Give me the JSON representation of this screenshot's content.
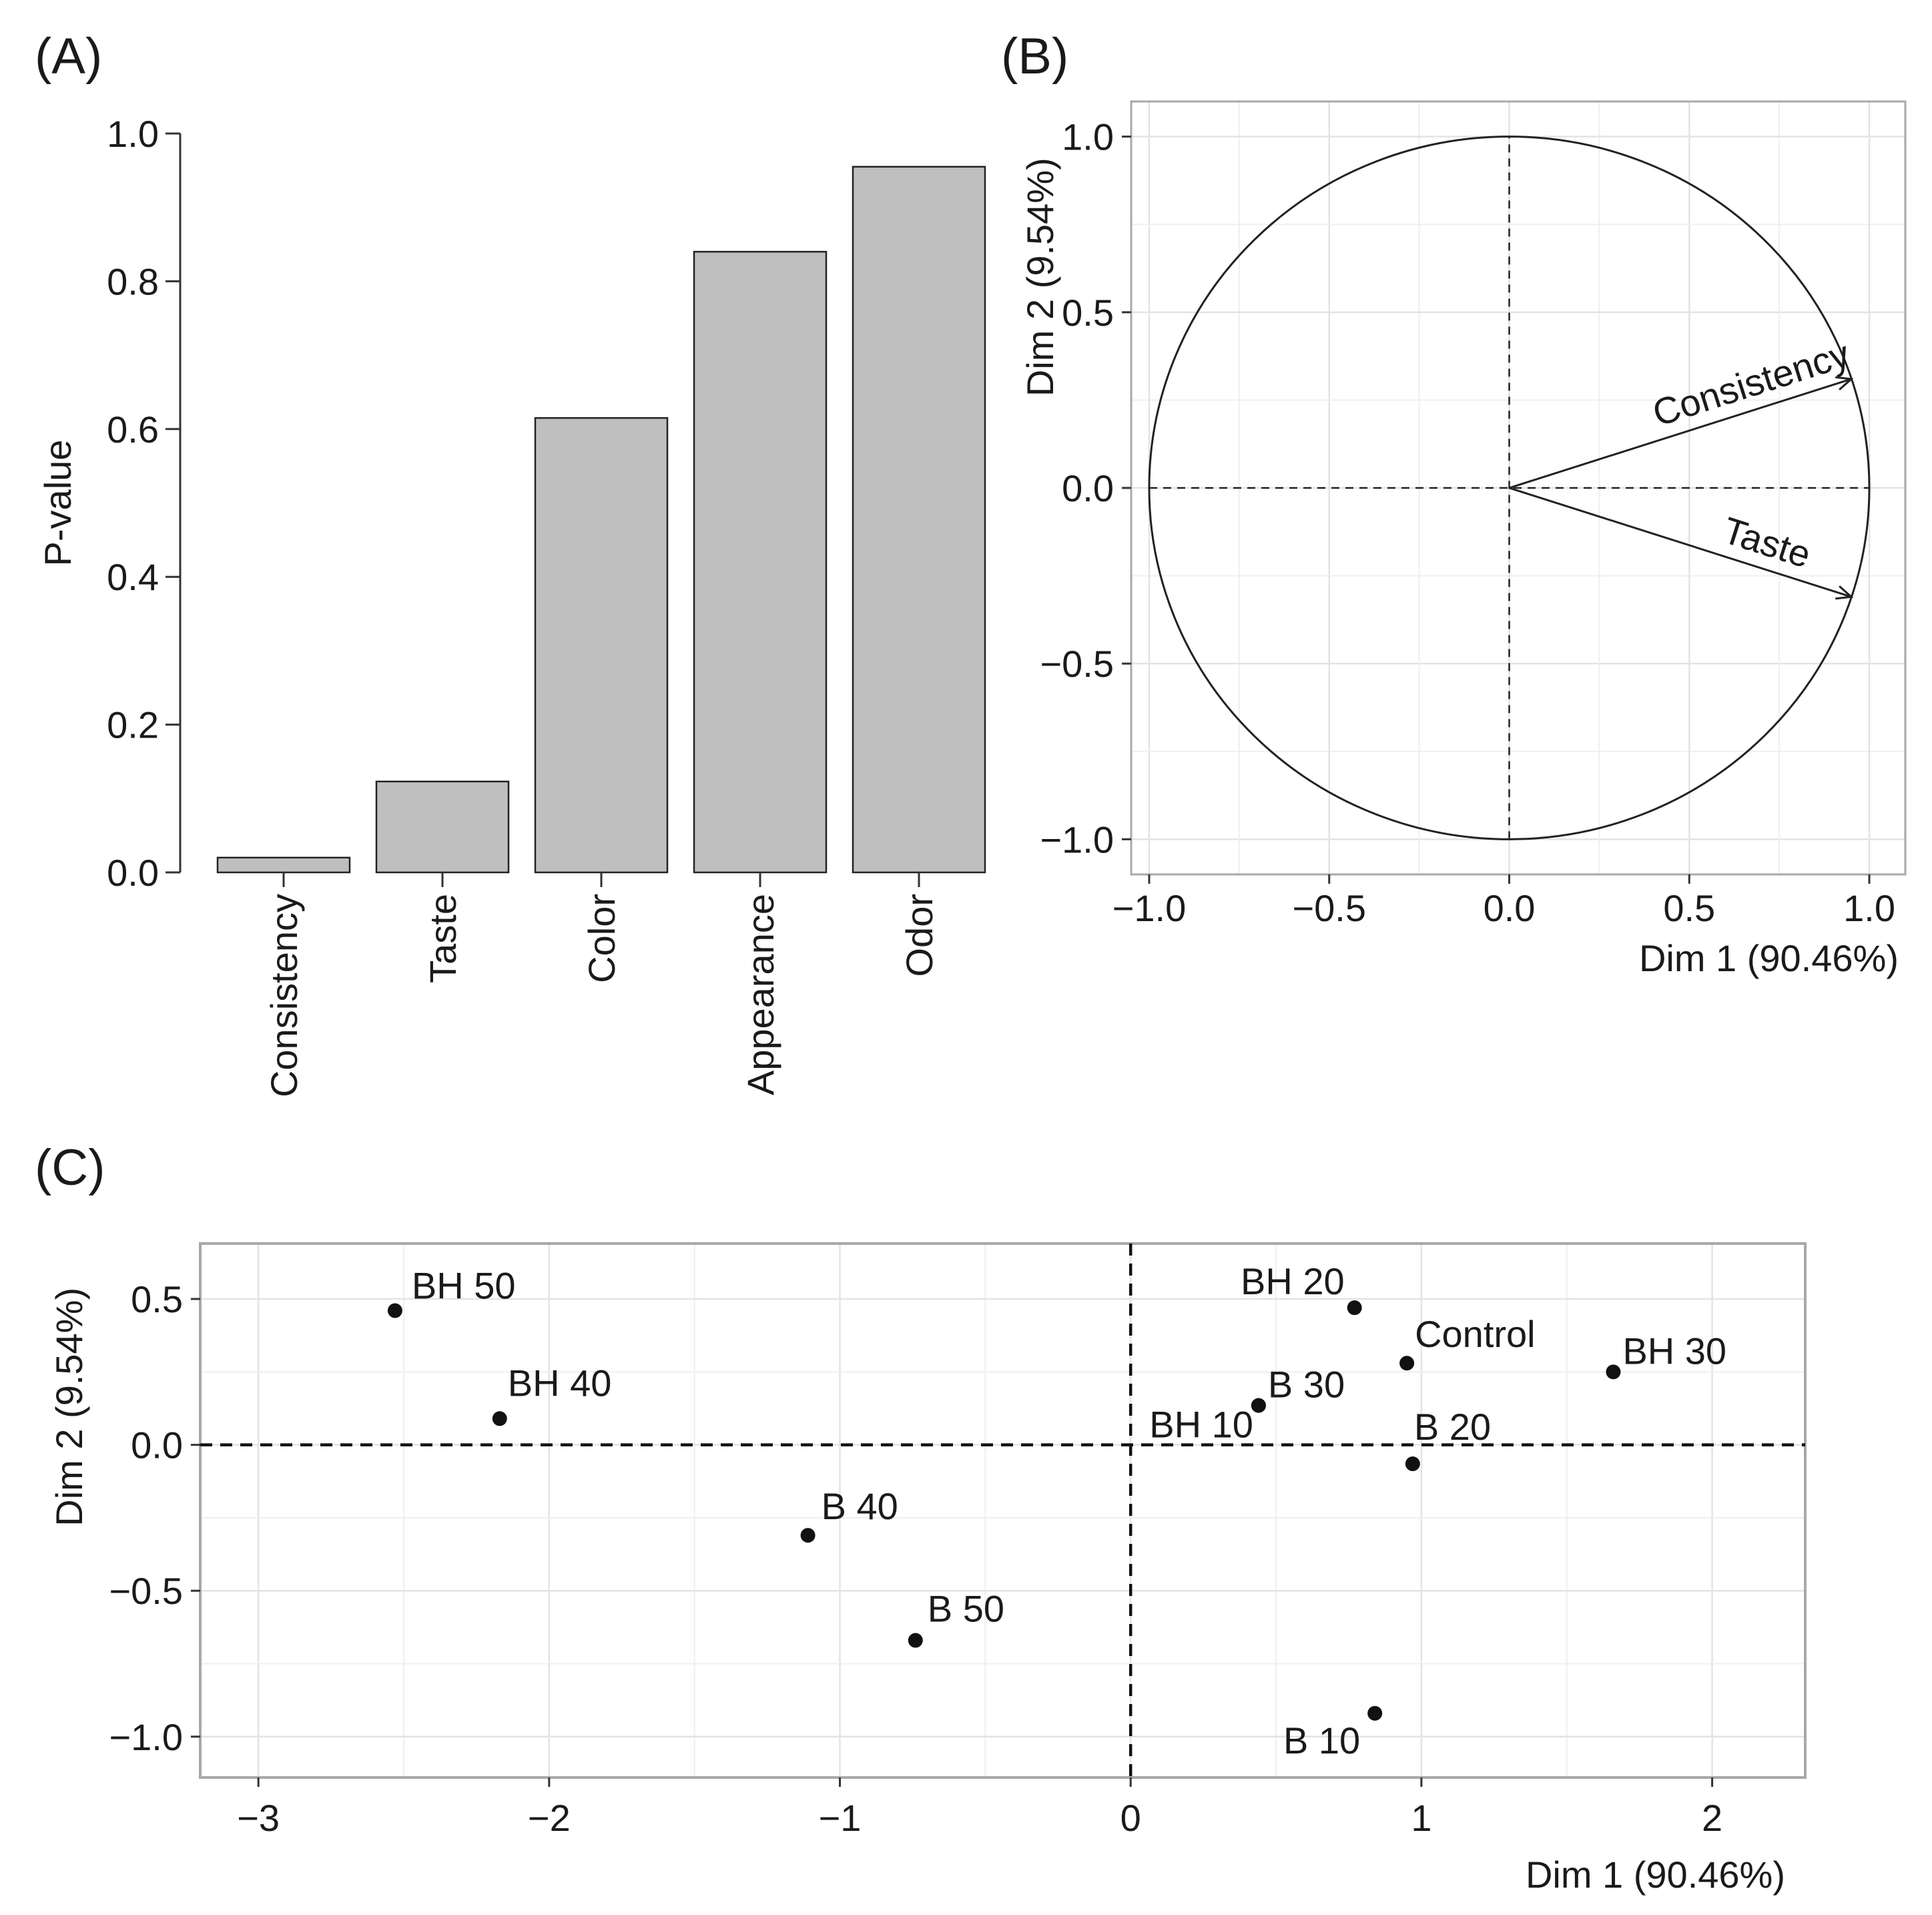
{
  "chart_data": [
    {
      "panel": "(A)",
      "type": "bar",
      "categories": [
        "Consistency",
        "Taste",
        "Color",
        "Appearance",
        "Odor"
      ],
      "values": [
        0.02,
        0.123,
        0.615,
        0.84,
        0.955
      ],
      "ylabel": "P-value",
      "xlabel": "",
      "ylim": [
        0,
        1
      ],
      "yticks": [
        "0.0",
        "0.2",
        "0.4",
        "0.6",
        "0.8",
        "1.0"
      ],
      "bar_color": "#bfbfbf"
    },
    {
      "panel": "(B)",
      "type": "scatter",
      "subtype": "variable correlation circle",
      "xlabel": "Dim 1 (90.46%)",
      "ylabel": "Dim 2 (9.54%)",
      "xlim": [
        -1.05,
        1.1
      ],
      "ylim": [
        -1.1,
        1.1
      ],
      "xticks": [
        "−1.0",
        "−0.5",
        "0.0",
        "0.5",
        "1.0"
      ],
      "yticks": [
        "−1.0",
        "−0.5",
        "0.0",
        "0.5",
        "1.0"
      ],
      "vectors": [
        {
          "name": "Consistency",
          "x": 0.95,
          "y": 0.31
        },
        {
          "name": "Taste",
          "x": 0.95,
          "y": -0.31
        }
      ],
      "grid": true
    },
    {
      "panel": "(C)",
      "type": "scatter",
      "subtype": "individuals factor map",
      "xlabel": "Dim 1 (90.46%)",
      "ylabel": "Dim 2 (9.54%)",
      "xlim": [
        -3.2,
        2.32
      ],
      "ylim": [
        -1.14,
        0.69
      ],
      "xticks": [
        "−3",
        "−2",
        "−1",
        "0",
        "1",
        "2"
      ],
      "yticks": [
        "−1.0",
        "−0.5",
        "0.0",
        "0.5"
      ],
      "points": [
        {
          "name": "BH 50",
          "x": -2.53,
          "y": 0.46
        },
        {
          "name": "BH 40",
          "x": -2.17,
          "y": 0.09
        },
        {
          "name": "B 40",
          "x": -1.11,
          "y": -0.31
        },
        {
          "name": "B 50",
          "x": -0.74,
          "y": -0.67
        },
        {
          "name": "BH 20",
          "x": 0.77,
          "y": 0.47
        },
        {
          "name": "Control",
          "x": 0.95,
          "y": 0.28
        },
        {
          "name": "BH 30",
          "x": 1.66,
          "y": 0.25
        },
        {
          "name": "B 30",
          "x": 0.44,
          "y": 0.135
        },
        {
          "name": "BH 10",
          "x": 0.44,
          "y": 0.135
        },
        {
          "name": "B 20",
          "x": 0.97,
          "y": -0.065
        },
        {
          "name": "B 10",
          "x": 0.84,
          "y": -0.92
        }
      ],
      "grid": true
    }
  ]
}
